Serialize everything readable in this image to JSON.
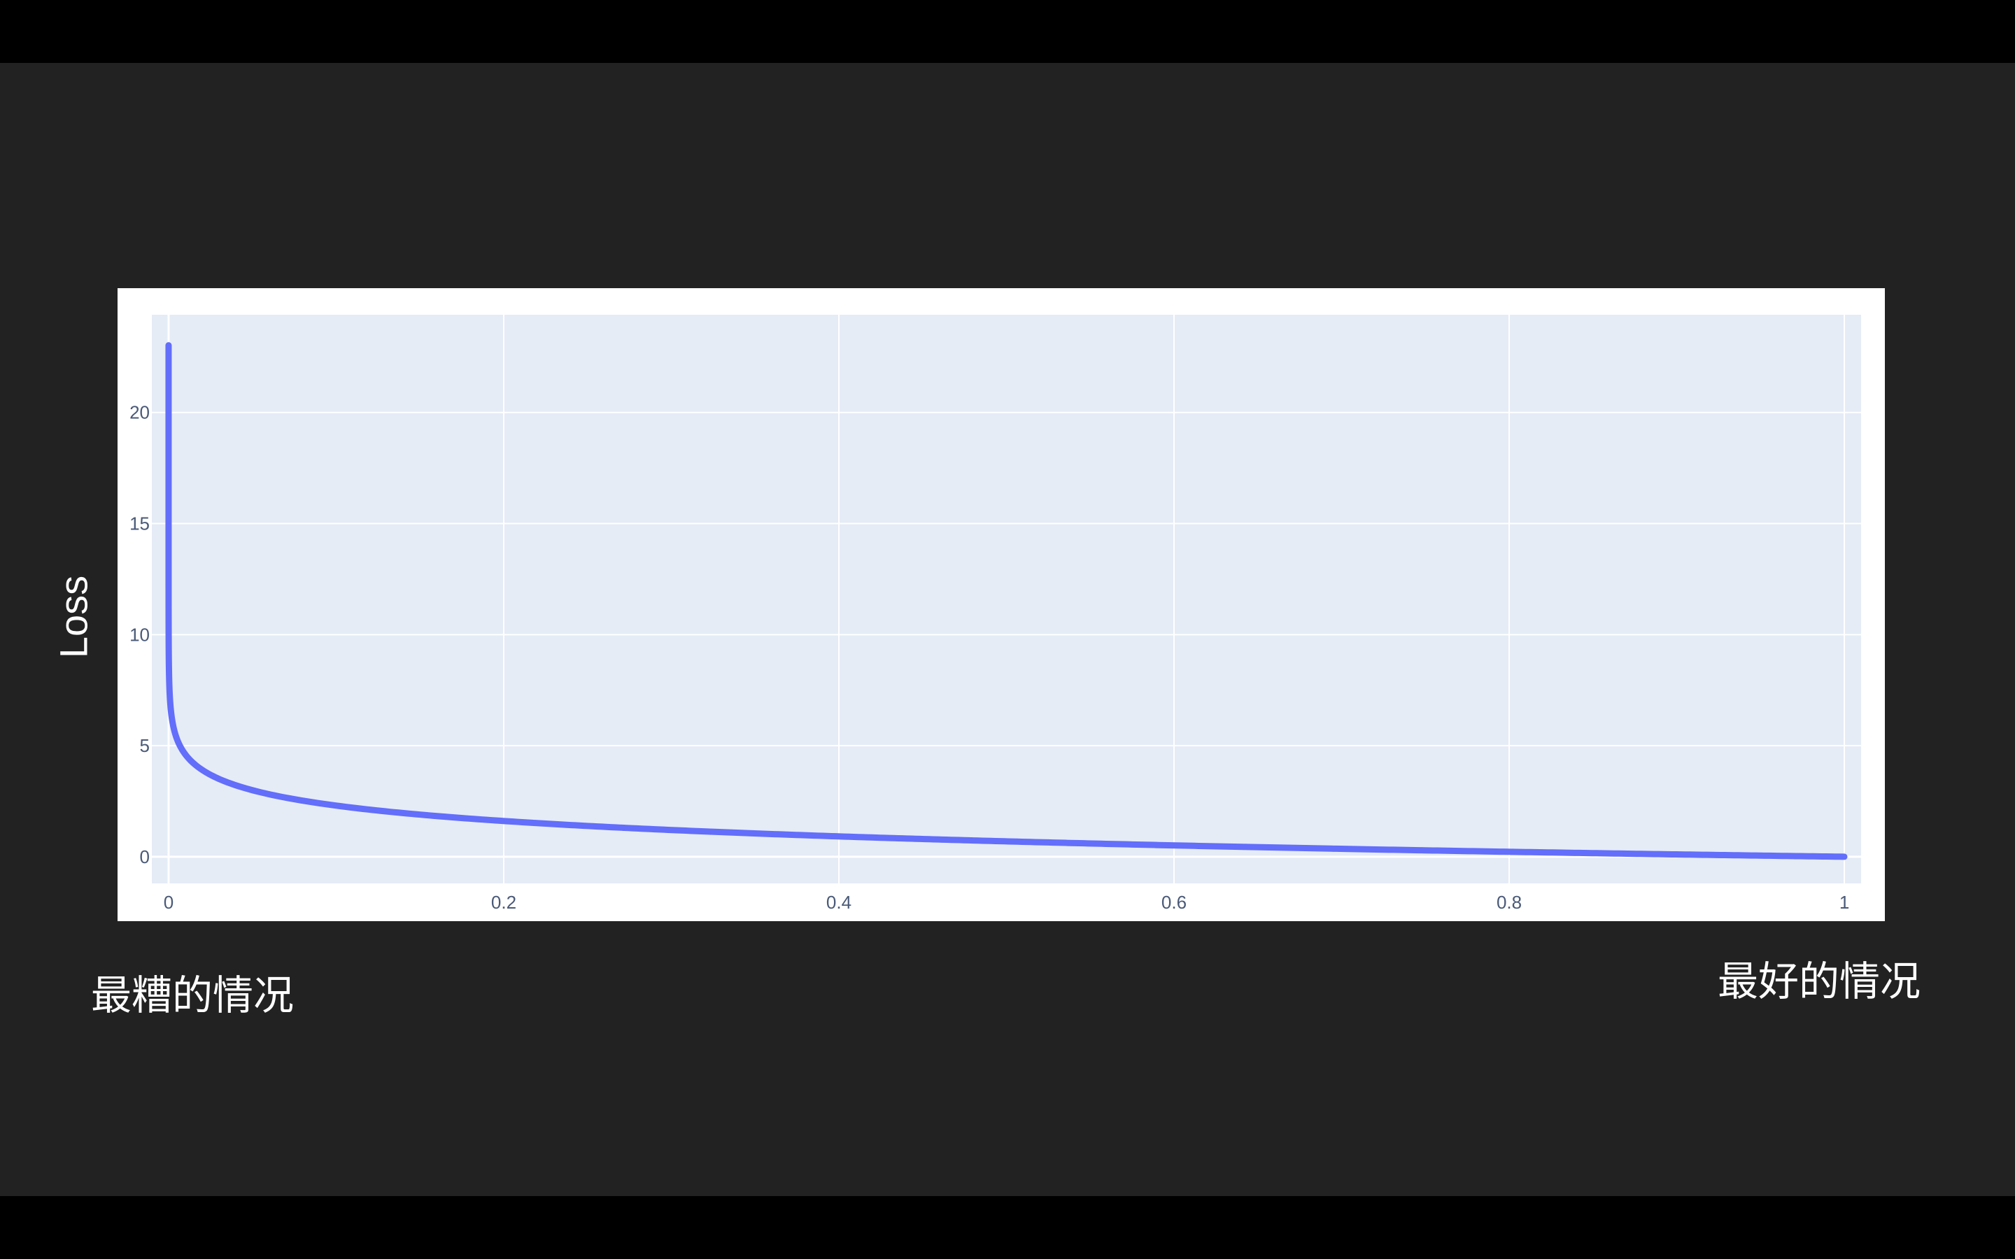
{
  "chart_data": {
    "type": "line",
    "title": "",
    "xlabel": "",
    "ylabel": "Loss",
    "x_ticks": [
      "0",
      "0.2",
      "0.4",
      "0.6",
      "0.8",
      "1"
    ],
    "x_tick_values": [
      0,
      0.2,
      0.4,
      0.6,
      0.8,
      1
    ],
    "y_ticks": [
      "0",
      "5",
      "10",
      "15",
      "20"
    ],
    "y_tick_values": [
      0,
      5,
      10,
      15,
      20
    ],
    "xlim": [
      -0.01,
      1.01
    ],
    "ylim": [
      -1.2,
      24.4
    ],
    "grid": true,
    "series": [
      {
        "color": "#636efa",
        "x": [
          1e-10,
          1e-06,
          1e-05,
          0.0001,
          0.001,
          0.002,
          0.005,
          0.01,
          0.02,
          0.03,
          0.05,
          0.075,
          0.1,
          0.15,
          0.2,
          0.25,
          0.3,
          0.35,
          0.4,
          0.45,
          0.5,
          0.55,
          0.6,
          0.65,
          0.7,
          0.75,
          0.8,
          0.85,
          0.9,
          0.95,
          1.0
        ],
        "y": [
          23.03,
          13.82,
          11.51,
          9.21,
          6.91,
          6.21,
          5.3,
          4.61,
          3.91,
          3.51,
          3.0,
          2.59,
          2.3,
          1.9,
          1.61,
          1.39,
          1.2,
          1.05,
          0.92,
          0.8,
          0.69,
          0.6,
          0.51,
          0.43,
          0.36,
          0.29,
          0.22,
          0.16,
          0.11,
          0.05,
          0.0
        ]
      }
    ]
  },
  "captions": {
    "worst": "最糟的情况",
    "best": "最好的情况"
  },
  "colors": {
    "background": "#222222",
    "letterbox": "#000000",
    "plot_bg": "#e5ecf6",
    "grid": "#ffffff",
    "line": "#636efa"
  }
}
